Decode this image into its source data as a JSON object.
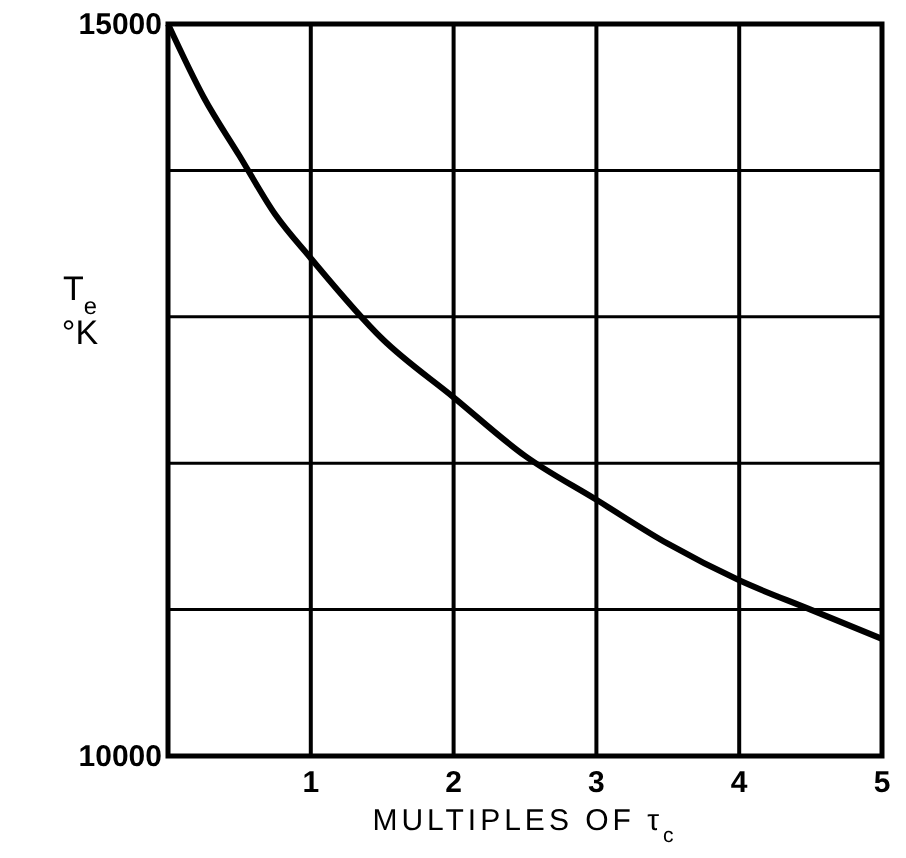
{
  "chart_data": {
    "type": "line",
    "xlabel": "MULTIPLES OF τ$_{c}$",
    "ylabel": "T$_{e}$ °K",
    "x": [
      0,
      0.25,
      0.5,
      0.75,
      1,
      1.5,
      2,
      2.5,
      3,
      3.5,
      4,
      4.5,
      5
    ],
    "series": [
      {
        "color": "#000000",
        "values": [
          15000,
          14500,
          14100,
          13700,
          13400,
          12850,
          12450,
          12050,
          11750,
          11450,
          11200,
          11000,
          10800
        ]
      }
    ],
    "xlim": [
      0,
      5
    ],
    "xticks": [
      1,
      2,
      3,
      4,
      5
    ],
    "ylim": [
      10000,
      15000
    ],
    "yticks": [
      10000,
      {
        "value": 11000,
        "label": null
      },
      {
        "value": 12000,
        "label": null
      },
      {
        "value": 13000,
        "label": null
      },
      {
        "value": 14000,
        "label": null
      },
      15000
    ],
    "grid": true,
    "marker": "none",
    "line_style": "solid"
  }
}
